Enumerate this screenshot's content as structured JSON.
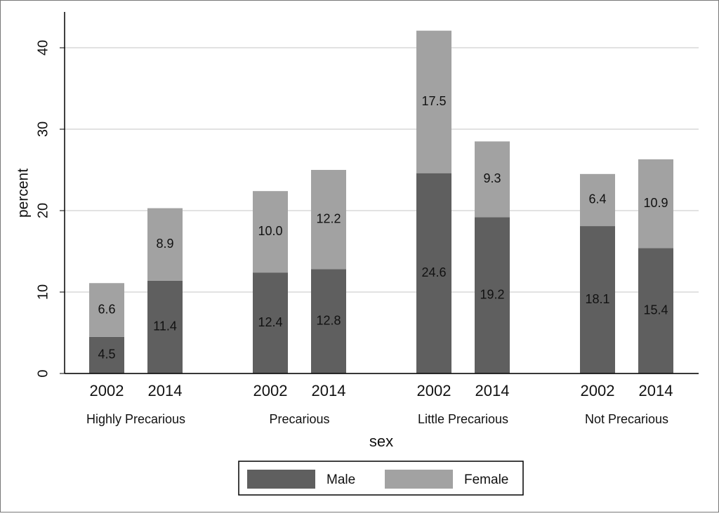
{
  "chart_data": {
    "type": "stacked-bar",
    "x_label": "sex",
    "y_label": "percent",
    "groups": [
      "Highly Precarious",
      "Precarious",
      "Little Precarious",
      "Not Precarious"
    ],
    "categories": [
      "2002",
      "2014",
      "2002",
      "2014",
      "2002",
      "2014",
      "2002",
      "2014"
    ],
    "series": [
      {
        "name": "Male",
        "color": "#5f5f5f",
        "values": [
          4.5,
          11.4,
          12.4,
          12.8,
          24.6,
          19.2,
          18.1,
          15.4
        ],
        "value_labels": [
          "4.5",
          "11.4",
          "12.4",
          "12.8",
          "24.6",
          "19.2",
          "18.1",
          "15.4"
        ]
      },
      {
        "name": "Female",
        "color": "#a2a2a2",
        "values": [
          6.6,
          8.9,
          10.0,
          12.2,
          17.5,
          9.3,
          6.4,
          10.9
        ],
        "value_labels": [
          "6.6",
          "8.9",
          "10.0",
          "12.2",
          "17.5",
          "9.3",
          "6.4",
          "10.9"
        ]
      }
    ],
    "ylim": [
      0,
      44.4
    ],
    "yticks": [
      0,
      10,
      20,
      30,
      40
    ],
    "grid": true,
    "legend": "bottom"
  }
}
